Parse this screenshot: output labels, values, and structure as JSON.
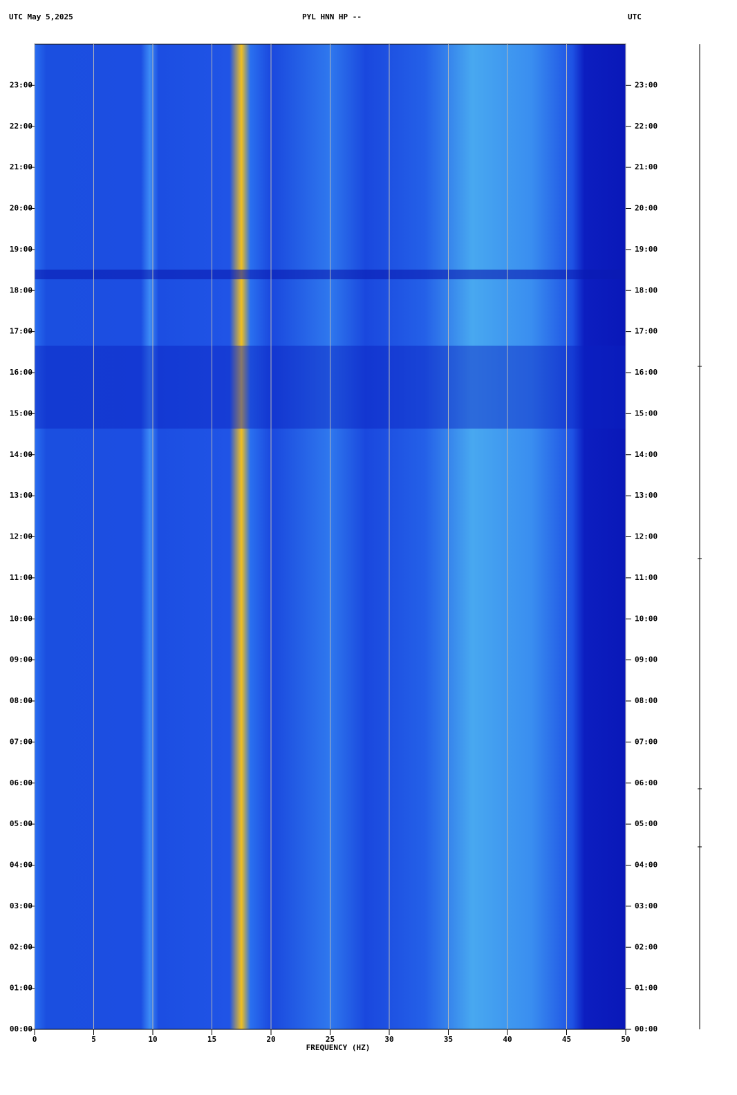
{
  "chart_data": {
    "type": "spectrogram",
    "header_left": "UTC  May 5,2025",
    "title": "PYL HNN HP --",
    "header_right": "UTC",
    "xlabel": "FREQUENCY (HZ)",
    "xlim": [
      0,
      50
    ],
    "xticks": [
      0,
      5,
      10,
      15,
      20,
      25,
      30,
      35,
      40,
      45,
      50
    ],
    "ylim": [
      0,
      24
    ],
    "yticks": [
      {
        "value": 0,
        "label": "00:00"
      },
      {
        "value": 1,
        "label": "01:00"
      },
      {
        "value": 2,
        "label": "02:00"
      },
      {
        "value": 3,
        "label": "03:00"
      },
      {
        "value": 4,
        "label": "04:00"
      },
      {
        "value": 5,
        "label": "05:00"
      },
      {
        "value": 6,
        "label": "06:00"
      },
      {
        "value": 7,
        "label": "07:00"
      },
      {
        "value": 8,
        "label": "08:00"
      },
      {
        "value": 9,
        "label": "09:00"
      },
      {
        "value": 10,
        "label": "10:00"
      },
      {
        "value": 11,
        "label": "11:00"
      },
      {
        "value": 12,
        "label": "12:00"
      },
      {
        "value": 13,
        "label": "13:00"
      },
      {
        "value": 14,
        "label": "14:00"
      },
      {
        "value": 15,
        "label": "15:00"
      },
      {
        "value": 16,
        "label": "16:00"
      },
      {
        "value": 17,
        "label": "17:00"
      },
      {
        "value": 18,
        "label": "18:00"
      },
      {
        "value": 19,
        "label": "19:00"
      },
      {
        "value": 20,
        "label": "20:00"
      },
      {
        "value": 21,
        "label": "21:00"
      },
      {
        "value": 22,
        "label": "22:00"
      },
      {
        "value": 23,
        "label": "23:00"
      }
    ],
    "grid": true,
    "grid_color": "#b8b8b8"
  }
}
